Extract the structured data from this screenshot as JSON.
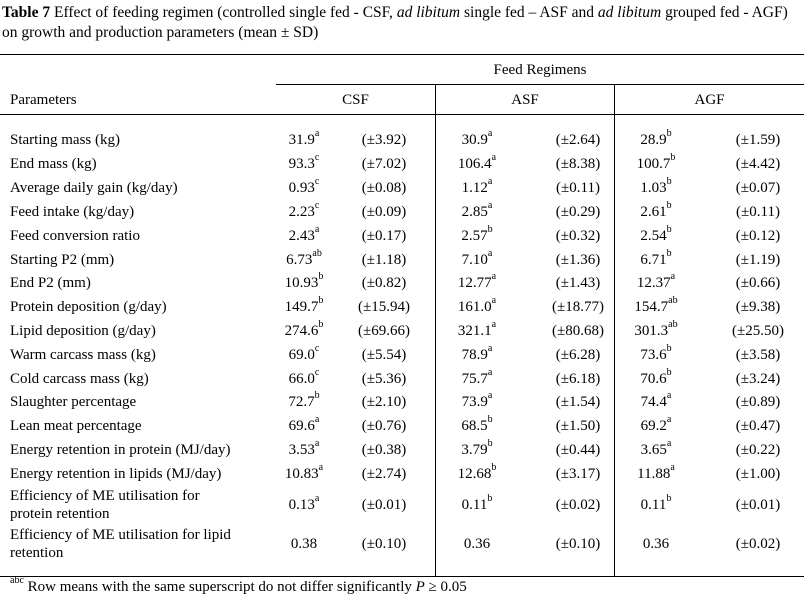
{
  "caption": {
    "table_label": "Table 7",
    "part1": " Effect of feeding regimen (controlled single fed - CSF, ",
    "ital1": "ad libitum",
    "part2": " single fed – ASF and ",
    "ital2": "ad libitum",
    "part3": " grouped fed - AGF) on growth and production parameters (mean ± SD)"
  },
  "header": {
    "group_label": "Feed Regimens",
    "param_label": "Parameters",
    "groups": [
      "CSF",
      "ASF",
      "AGF"
    ]
  },
  "rows": [
    {
      "param": [
        "Starting mass (kg)"
      ],
      "cells": [
        [
          "31.9",
          "a",
          "(±3.92)"
        ],
        [
          "30.9",
          "a",
          "(±2.64)"
        ],
        [
          "28.9",
          "b",
          "(±1.59)"
        ]
      ]
    },
    {
      "param": [
        "End mass (kg)"
      ],
      "cells": [
        [
          "93.3",
          "c",
          "(±7.02)"
        ],
        [
          "106.4",
          "a",
          "(±8.38)"
        ],
        [
          "100.7",
          "b",
          "(±4.42)"
        ]
      ]
    },
    {
      "param": [
        "Average daily gain (kg/day)"
      ],
      "cells": [
        [
          "0.93",
          "c",
          "(±0.08)"
        ],
        [
          "1.12",
          "a",
          "(±0.11)"
        ],
        [
          "1.03",
          "b",
          "(±0.07)"
        ]
      ]
    },
    {
      "param": [
        "Feed intake (kg/day)"
      ],
      "cells": [
        [
          "2.23",
          "c",
          "(±0.09)"
        ],
        [
          "2.85",
          "a",
          "(±0.29)"
        ],
        [
          "2.61",
          "b",
          "(±0.11)"
        ]
      ]
    },
    {
      "param": [
        "Feed conversion ratio"
      ],
      "cells": [
        [
          "2.43",
          "a",
          "(±0.17)"
        ],
        [
          "2.57",
          "b",
          "(±0.32)"
        ],
        [
          "2.54",
          "b",
          "(±0.12)"
        ]
      ]
    },
    {
      "param": [
        "Starting P2 (mm)"
      ],
      "cells": [
        [
          "6.73",
          "ab",
          "(±1.18)"
        ],
        [
          "7.10",
          "a",
          "(±1.36)"
        ],
        [
          "6.71",
          "b",
          "(±1.19)"
        ]
      ]
    },
    {
      "param": [
        "End P2 (mm)"
      ],
      "cells": [
        [
          "10.93",
          "b",
          "(±0.82)"
        ],
        [
          "12.77",
          "a",
          "(±1.43)"
        ],
        [
          "12.37",
          "a",
          "(±0.66)"
        ]
      ]
    },
    {
      "param": [
        "Protein deposition (g/day)"
      ],
      "cells": [
        [
          "149.7",
          "b",
          "(±15.94)"
        ],
        [
          "161.0",
          "a",
          "(±18.77)"
        ],
        [
          "154.7",
          "ab",
          "(±9.38)"
        ]
      ]
    },
    {
      "param": [
        "Lipid deposition (g/day)"
      ],
      "cells": [
        [
          "274.6",
          "b",
          "(±69.66)"
        ],
        [
          "321.1",
          "a",
          "(±80.68)"
        ],
        [
          "301.3",
          "ab",
          "(±25.50)"
        ]
      ]
    },
    {
      "param": [
        "Warm carcass mass (kg)"
      ],
      "cells": [
        [
          "69.0",
          "c",
          "(±5.54)"
        ],
        [
          "78.9",
          "a",
          "(±6.28)"
        ],
        [
          "73.6",
          "b",
          "(±3.58)"
        ]
      ]
    },
    {
      "param": [
        "Cold carcass mass (kg)"
      ],
      "cells": [
        [
          "66.0",
          "c",
          "(±5.36)"
        ],
        [
          "75.7",
          "a",
          "(±6.18)"
        ],
        [
          "70.6",
          "b",
          "(±3.24)"
        ]
      ]
    },
    {
      "param": [
        "Slaughter percentage"
      ],
      "cells": [
        [
          "72.7",
          "b",
          "(±2.10)"
        ],
        [
          "73.9",
          "a",
          "(±1.54)"
        ],
        [
          "74.4",
          "a",
          "(±0.89)"
        ]
      ]
    },
    {
      "param": [
        "Lean meat percentage"
      ],
      "cells": [
        [
          "69.6",
          "a",
          "(±0.76)"
        ],
        [
          "68.5",
          "b",
          "(±1.50)"
        ],
        [
          "69.2",
          "a",
          "(±0.47)"
        ]
      ]
    },
    {
      "param": [
        "Energy retention in protein (MJ/day)"
      ],
      "cells": [
        [
          "3.53",
          "a",
          "(±0.38)"
        ],
        [
          "3.79",
          "b",
          "(±0.44)"
        ],
        [
          "3.65",
          "a",
          "(±0.22)"
        ]
      ]
    },
    {
      "param": [
        "Energy retention in lipids (MJ/day)"
      ],
      "cells": [
        [
          "10.83",
          "a",
          "(±2.74)"
        ],
        [
          "12.68",
          "b",
          "(±3.17)"
        ],
        [
          "11.88",
          "a",
          "(±1.00)"
        ]
      ]
    },
    {
      "param": [
        "Efficiency of ME utilisation for",
        "protein retention"
      ],
      "cells": [
        [
          "0.13",
          "a",
          "(±0.01)"
        ],
        [
          "0.11",
          "b",
          "(±0.02)"
        ],
        [
          "0.11",
          "b",
          "(±0.01)"
        ]
      ]
    },
    {
      "param": [
        "Efficiency of ME utilisation for lipid",
        "retention"
      ],
      "cells": [
        [
          "0.38",
          "",
          "(±0.10)"
        ],
        [
          "0.36",
          "",
          "(±0.10)"
        ],
        [
          "0.36",
          "",
          "(±0.02)"
        ]
      ]
    }
  ],
  "footnote": {
    "sup": "abc",
    "text": " Row means with the same superscript do not differ significantly ",
    "p_symbol": "P",
    "tail": " ≥ 0.05"
  }
}
